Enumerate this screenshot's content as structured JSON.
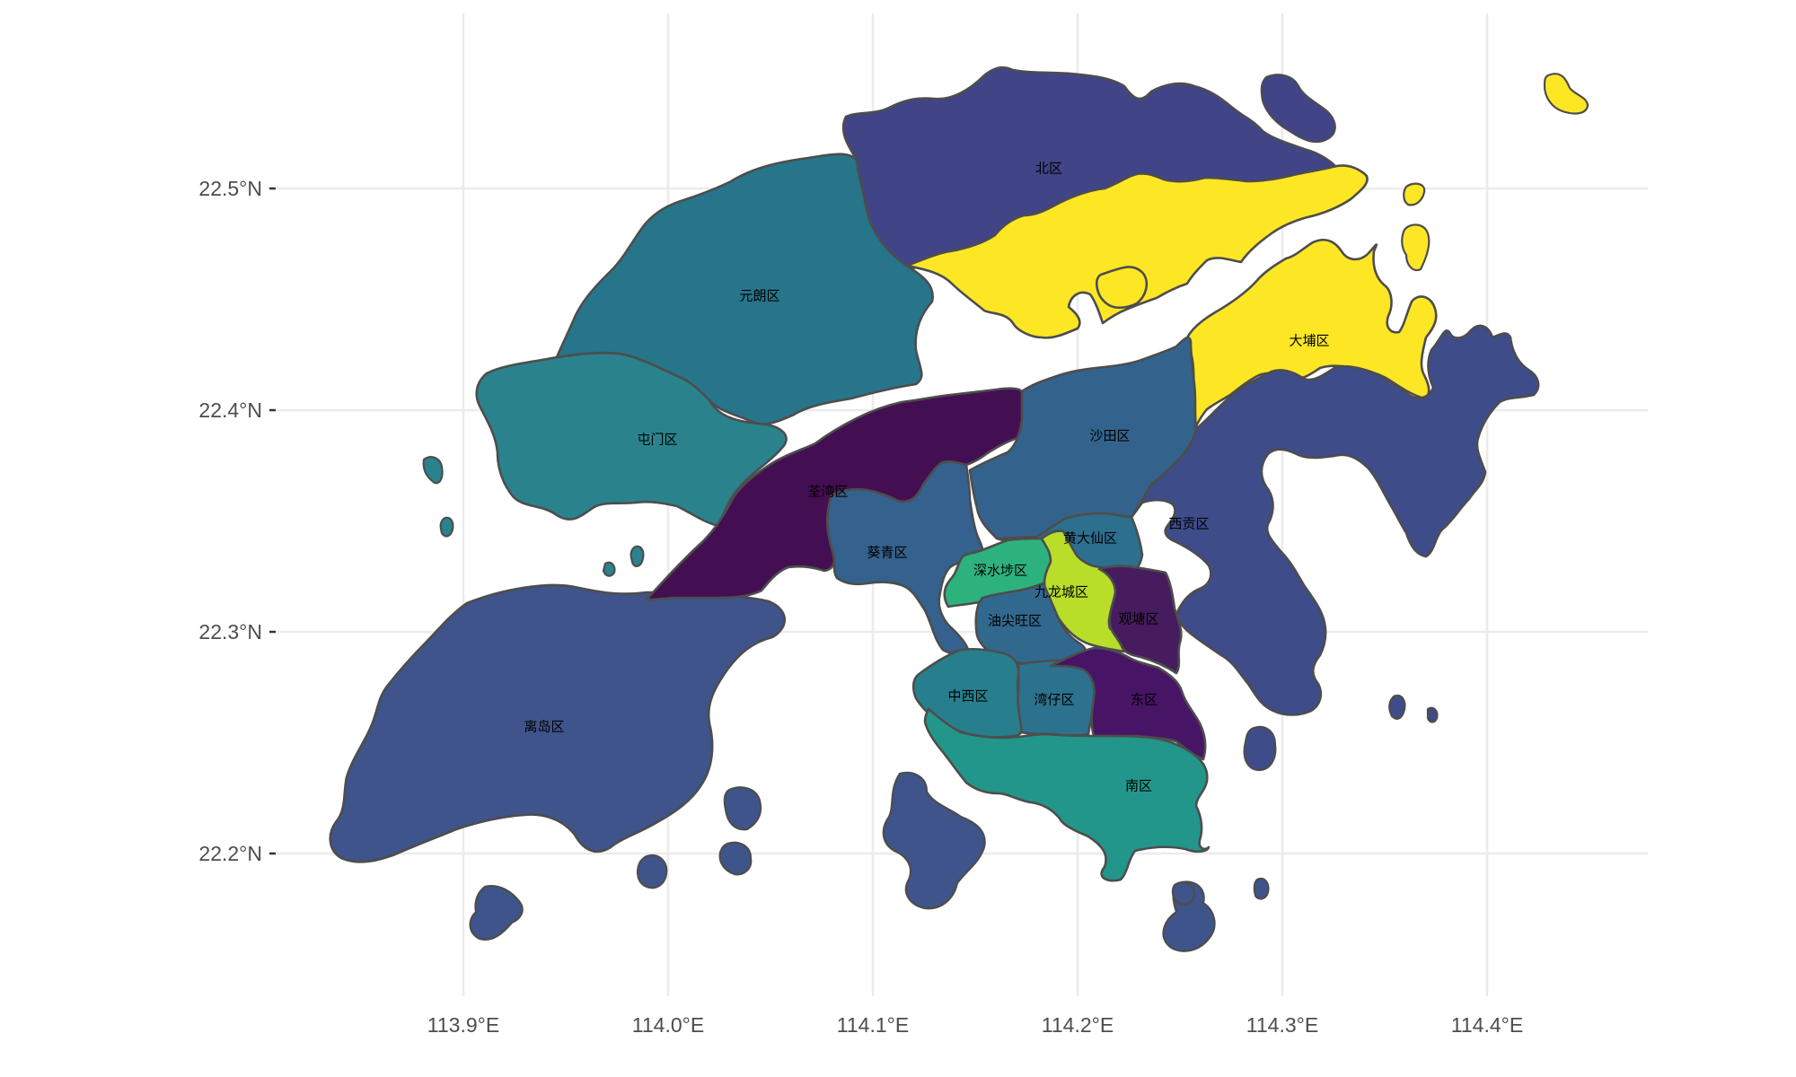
{
  "map": {
    "x_axis": {
      "ticks": [
        {
          "value": 113.9,
          "label": "113.9°E"
        },
        {
          "value": 114.0,
          "label": "114.0°E"
        },
        {
          "value": 114.1,
          "label": "114.1°E"
        },
        {
          "value": 114.2,
          "label": "114.2°E"
        },
        {
          "value": 114.3,
          "label": "114.3°E"
        },
        {
          "value": 114.4,
          "label": "114.4°E"
        }
      ]
    },
    "y_axis": {
      "ticks": [
        {
          "value": 22.5,
          "label": "22.5°N"
        },
        {
          "value": 22.4,
          "label": "22.4°N"
        },
        {
          "value": 22.3,
          "label": "22.3°N"
        },
        {
          "value": 22.2,
          "label": "22.2°N"
        }
      ]
    },
    "colors": {
      "border": "#4d4d4d",
      "grid": "#ebebeb",
      "background": "#ffffff"
    },
    "districts": [
      {
        "name": "北区",
        "color": "#414487"
      },
      {
        "name": "大埔区",
        "color": "#fde725"
      },
      {
        "name": "元朗区",
        "color": "#26758b"
      },
      {
        "name": "屯门区",
        "color": "#2a838c"
      },
      {
        "name": "荃湾区",
        "color": "#440f52"
      },
      {
        "name": "沙田区",
        "color": "#33638d"
      },
      {
        "name": "西贡区",
        "color": "#3f4c8a"
      },
      {
        "name": "离岛区",
        "color": "#3e548a"
      },
      {
        "name": "葵青区",
        "color": "#34618d"
      },
      {
        "name": "黄大仙区",
        "color": "#2d6f8e"
      },
      {
        "name": "深水埗区",
        "color": "#2db27d"
      },
      {
        "name": "九龙城区",
        "color": "#b8de29"
      },
      {
        "name": "观塘区",
        "color": "#461c5e"
      },
      {
        "name": "油尖旺区",
        "color": "#31688e"
      },
      {
        "name": "中西区",
        "color": "#277f8e"
      },
      {
        "name": "湾仔区",
        "color": "#2c728e"
      },
      {
        "name": "东区",
        "color": "#471466"
      },
      {
        "name": "南区",
        "color": "#22968b"
      }
    ]
  }
}
